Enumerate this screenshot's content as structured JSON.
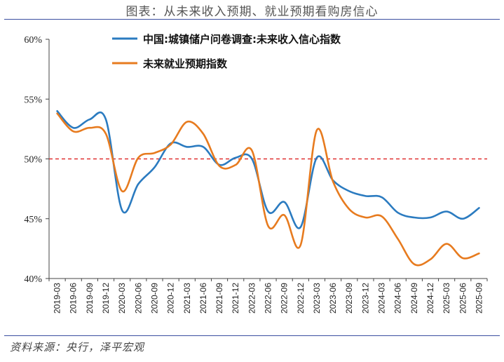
{
  "title": "图表：从未来收入预期、就业预期看购房信心",
  "source": "资料来源：央行，泽平宏观",
  "chart_data": {
    "type": "line",
    "title": "图表：从未来收入预期、就业预期看购房信心",
    "y_tick_labels": [
      "40%",
      "45%",
      "50%",
      "55%",
      "60%"
    ],
    "ylim": [
      40,
      60
    ],
    "reference_line": {
      "value": 50,
      "color": "#e03030",
      "style": "dashed"
    },
    "x": [
      "2019-03",
      "2019-06",
      "2019-09",
      "2019-12",
      "2020-03",
      "2020-06",
      "2020-09",
      "2020-12",
      "2021-03",
      "2021-06",
      "2021-09",
      "2021-12",
      "2022-03",
      "2022-06",
      "2022-09",
      "2022-12",
      "2023-03",
      "2023-06",
      "2023-09",
      "2023-12",
      "2024-03",
      "2024-06",
      "2024-09",
      "2024-12",
      "2025-03",
      "2025-06",
      "2025-09"
    ],
    "series": [
      {
        "name": "中国:城镇储户问卷调查:未来收入信心指数",
        "color": "#2b7bc0",
        "values": [
          54.0,
          52.6,
          53.3,
          53.3,
          45.7,
          47.9,
          49.3,
          51.3,
          51.0,
          51.0,
          49.5,
          50.1,
          50.0,
          45.6,
          46.4,
          44.3,
          50.1,
          48.2,
          47.3,
          46.9,
          46.8,
          45.5,
          45.1,
          45.1,
          45.6,
          45.0,
          45.9
        ]
      },
      {
        "name": "未来就业预期指数",
        "color": "#e77b1f",
        "values": [
          53.8,
          52.3,
          52.6,
          52.1,
          47.3,
          50.1,
          50.5,
          51.2,
          53.1,
          52.1,
          49.4,
          49.5,
          50.7,
          44.4,
          45.3,
          42.8,
          52.4,
          48.1,
          45.8,
          45.1,
          45.2,
          43.3,
          41.2,
          41.6,
          42.9,
          41.7,
          42.1
        ]
      }
    ],
    "grid": false,
    "legend_position": "top"
  }
}
